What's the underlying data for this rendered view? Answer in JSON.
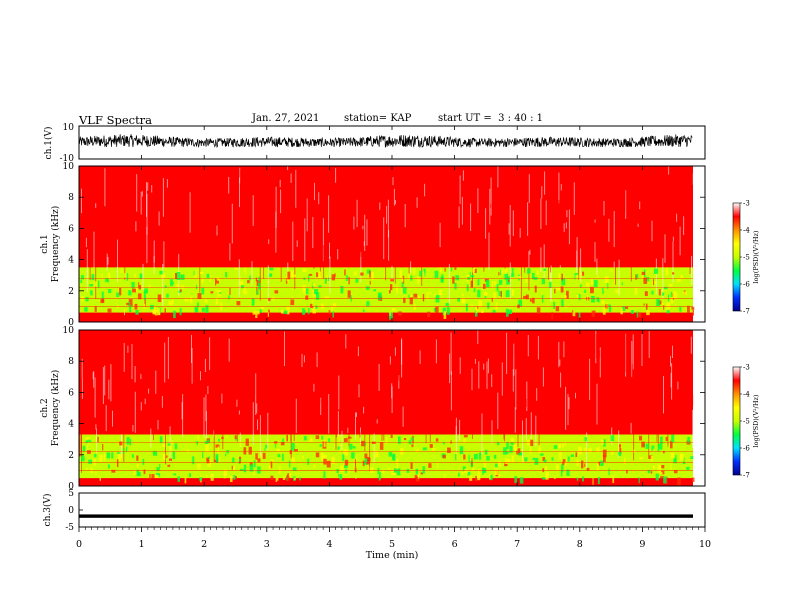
{
  "header": {
    "title": "VLF Spectra",
    "date": "Jan. 27, 2021",
    "station": "station= KAP",
    "start": "start UT =  3 : 40 : 1"
  },
  "colorbar": {
    "label": "log(PSD)(V²/Hz)",
    "ticks": [
      "-3",
      "-4",
      "-5",
      "-6",
      "-7"
    ],
    "colors": [
      "#000090",
      "#0030ff",
      "#00e0ff",
      "#00ff40",
      "#c8ff00",
      "#ffff00",
      "#ff9000",
      "#ff0000",
      "#ffffff"
    ]
  },
  "chart_data": [
    {
      "type": "line",
      "name": "ch.1 waveform",
      "ylabel": "ch.1(V)",
      "ylim": [
        -10,
        10
      ],
      "yticks": [
        "10",
        "-10"
      ],
      "xlim": [
        0,
        10
      ],
      "description_values": {
        "x_end_min": 9.8,
        "envelope_typical_V": [
          -6,
          7
        ]
      }
    },
    {
      "type": "heatmap",
      "name": "ch.1 spectrogram",
      "ylabel": "ch.1\nFrequency (kHz)",
      "ylabel_lines": [
        "ch.1",
        "Frequency (kHz)"
      ],
      "ylim": [
        0,
        10
      ],
      "yticks": [
        "0",
        "2",
        "4",
        "6",
        "8",
        "10"
      ],
      "xlim": [
        0,
        10
      ],
      "clim": [
        -7,
        -3
      ],
      "bands": [
        {
          "from_kHz": 3.5,
          "to_kHz": 10,
          "log_psd": -3.8
        },
        {
          "from_kHz": 0.6,
          "to_kHz": 3.5,
          "log_psd": -4.8
        },
        {
          "from_kHz": 0.0,
          "to_kHz": 0.6,
          "log_psd": -3.5
        }
      ]
    },
    {
      "type": "heatmap",
      "name": "ch.2 spectrogram",
      "ylabel": "ch.2\nFrequency (kHz)",
      "ylabel_lines": [
        "ch.2",
        "Frequency (kHz)"
      ],
      "ylim": [
        0,
        10
      ],
      "yticks": [
        "0",
        "2",
        "4",
        "6",
        "8",
        "10"
      ],
      "xlim": [
        0,
        10
      ],
      "clim": [
        -7,
        -3
      ],
      "bands": [
        {
          "from_kHz": 3.3,
          "to_kHz": 10,
          "log_psd": -3.8
        },
        {
          "from_kHz": 0.5,
          "to_kHz": 3.3,
          "log_psd": -4.8
        },
        {
          "from_kHz": 0.0,
          "to_kHz": 0.5,
          "log_psd": -3.5
        }
      ]
    },
    {
      "type": "line",
      "name": "ch.3 waveform",
      "ylabel": "ch.3(V)",
      "ylim": [
        -5,
        5
      ],
      "yticks": [
        "5",
        "0",
        "-5"
      ],
      "xlim": [
        0,
        10
      ],
      "description_values": {
        "x_end_min": 9.8,
        "envelope_V": [
          -2.3,
          -1.3
        ]
      }
    }
  ],
  "xaxis": {
    "label": "Time (min)",
    "ticks": [
      "0",
      "1",
      "2",
      "3",
      "4",
      "5",
      "6",
      "7",
      "8",
      "9",
      "10"
    ]
  }
}
